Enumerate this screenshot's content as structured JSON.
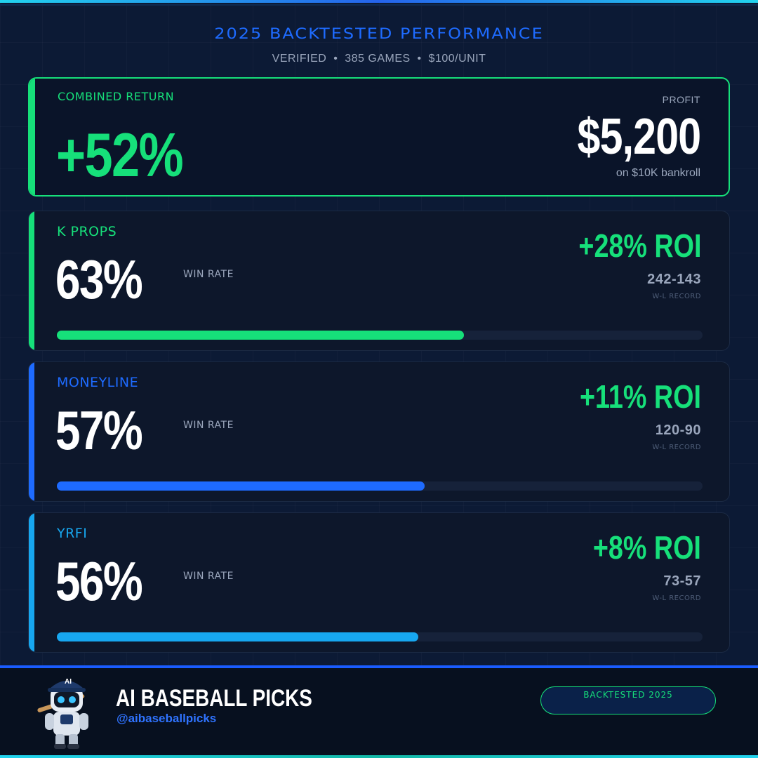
{
  "header": {
    "title": "2025 BACKTESTED PERFORMANCE",
    "subtitle": "VERIFIED  •  385 GAMES  •  $100/UNIT"
  },
  "combined": {
    "label": "COMBINED RETURN",
    "value": "+52%",
    "profit_label": "PROFIT",
    "profit_value": "$5,200",
    "profit_sub": "on $10K bankroll"
  },
  "metrics": [
    {
      "label": "K PROPS",
      "win_pct": "63%",
      "win_label": "WIN RATE",
      "roi": "+28% ROI",
      "record": "242-143",
      "record_label": "W-L RECORD",
      "fraction": 0.63,
      "color": "#16e07a"
    },
    {
      "label": "MONEYLINE",
      "win_pct": "57%",
      "win_label": "WIN RATE",
      "roi": "+11% ROI",
      "record": "120-90",
      "record_label": "W-L RECORD",
      "fraction": 0.57,
      "color": "#1e6bff"
    },
    {
      "label": "YRFI",
      "win_pct": "56%",
      "win_label": "WIN RATE",
      "roi": "+8% ROI",
      "record": "73-57",
      "record_label": "W-L RECORD",
      "fraction": 0.56,
      "color": "#17a7f0"
    }
  ],
  "footer": {
    "brand": "AI BASEBALL PICKS",
    "handle": "@aibaseballpicks",
    "badge": "BACKTESTED 2025",
    "mascot_icon": "robot-baseball-player-icon",
    "mascot_cap_text": "AI"
  },
  "colors": {
    "green": "#16e07a",
    "blue": "#1e6bff",
    "cyan": "#17a7f0"
  }
}
